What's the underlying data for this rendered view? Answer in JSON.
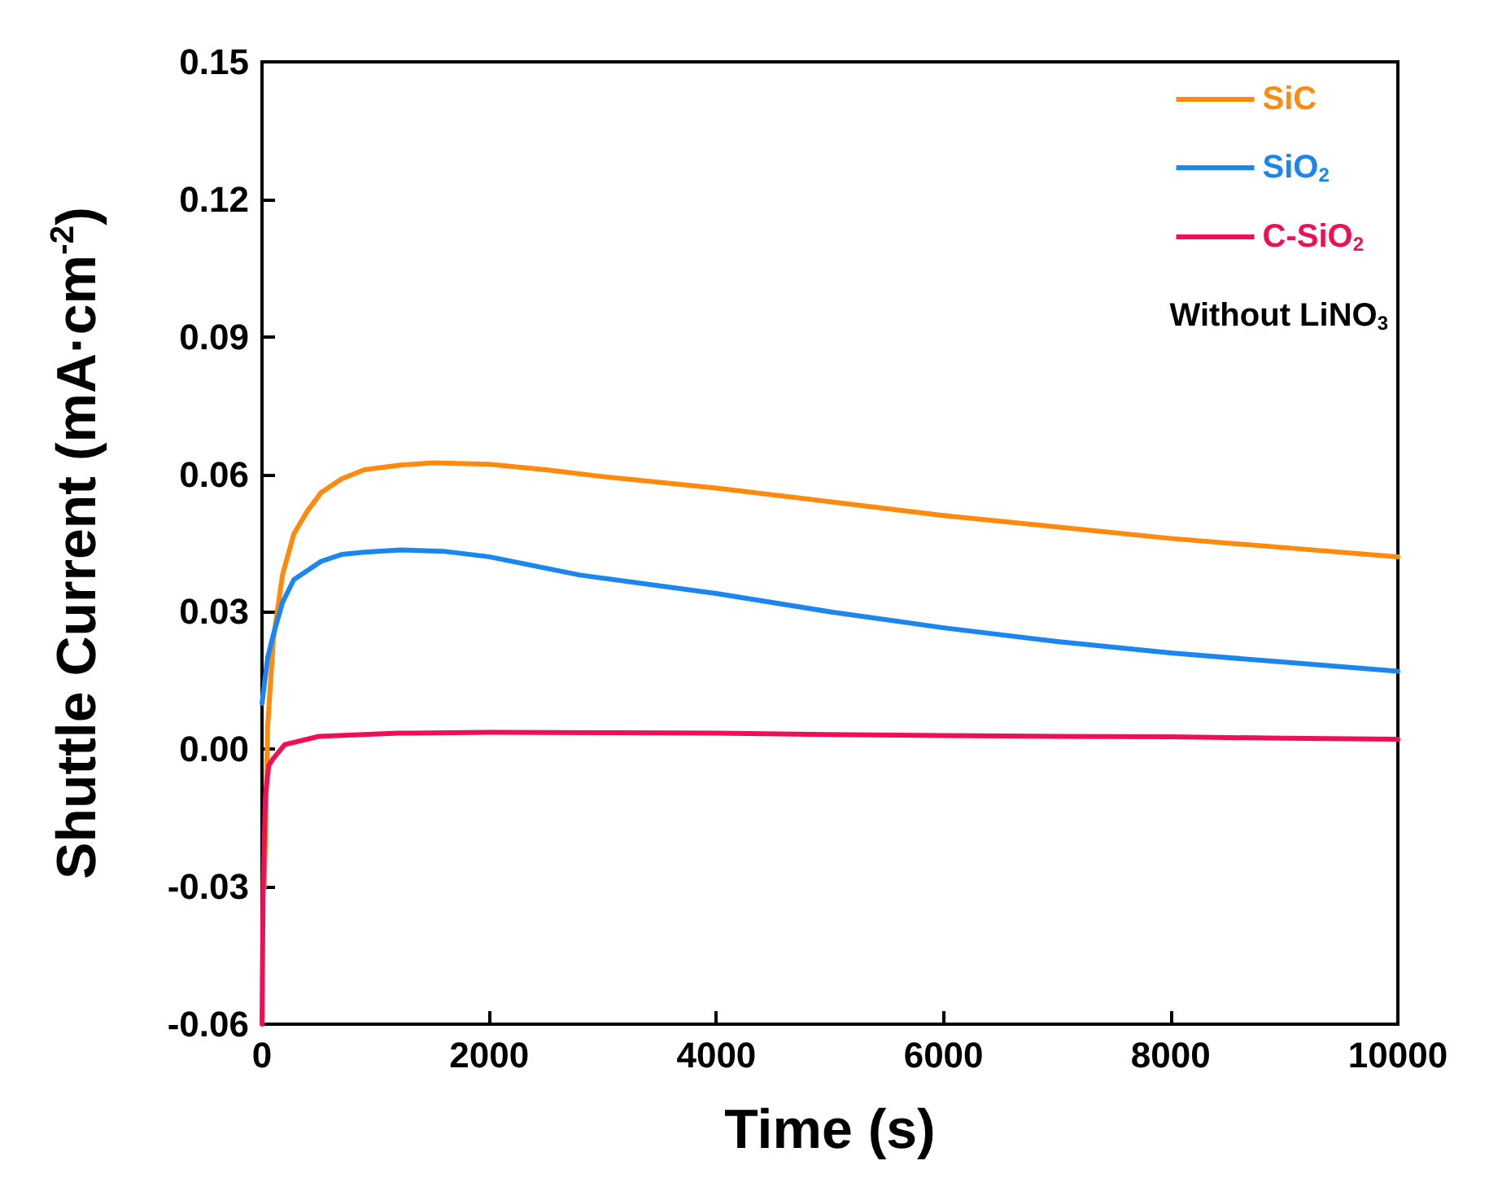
{
  "chart_data": {
    "type": "line",
    "xlabel": "Time (s)",
    "ylabel": "Shuttle Current (mA·cm$^{-2}$)",
    "annotations": [
      "Without LiNO$_{3}$"
    ],
    "xlim": [
      0,
      10000
    ],
    "xticks": [
      0,
      2000,
      4000,
      6000,
      8000,
      10000
    ],
    "ylim": [
      -0.06,
      0.15
    ],
    "yticks": [
      {
        "value": -0.06,
        "label": "-0.06"
      },
      {
        "value": -0.03,
        "label": "-0.03"
      },
      {
        "value": 0,
        "label": "0.00"
      },
      {
        "value": 0.03,
        "label": "0.03"
      },
      {
        "value": 0.06,
        "label": "0.06"
      },
      {
        "value": 0.09,
        "label": "0.09"
      },
      {
        "value": 0.12,
        "label": "0.12"
      },
      {
        "value": 0.15,
        "label": "0.15"
      }
    ],
    "grid": false,
    "legend": "top right",
    "marker": "none",
    "line_style": "solid",
    "series": [
      {
        "name": "SiC",
        "color": "#ff8a0d",
        "x": [
          20,
          50,
          100,
          180,
          280,
          400,
          520,
          700,
          900,
          1220,
          1500,
          2000,
          2500,
          3000,
          4000,
          5000,
          6000,
          7000,
          8000,
          9000,
          10000
        ],
        "values": [
          -0.03,
          0.005,
          0.024,
          0.038,
          0.047,
          0.052,
          0.056,
          0.059,
          0.061,
          0.062,
          0.0625,
          0.0622,
          0.061,
          0.0595,
          0.057,
          0.054,
          0.051,
          0.0485,
          0.046,
          0.044,
          0.042
        ]
      },
      {
        "name": "SiO$_{2}$",
        "color": "#1b86f0",
        "x": [
          0,
          50,
          100,
          180,
          280,
          400,
          520,
          700,
          900,
          1220,
          1600,
          2000,
          2800,
          4000,
          5000,
          6000,
          7000,
          8000,
          9000,
          10000
        ],
        "values": [
          0.01,
          0.02,
          0.025,
          0.032,
          0.037,
          0.039,
          0.041,
          0.0425,
          0.043,
          0.0435,
          0.0432,
          0.042,
          0.038,
          0.034,
          0.03,
          0.0265,
          0.0235,
          0.021,
          0.019,
          0.017
        ]
      },
      {
        "name": "C-SiO$_{2}$",
        "color": "#ef0f57",
        "x": [
          0,
          10,
          30,
          60,
          100,
          200,
          500,
          1200,
          2000,
          3000,
          4000,
          5000,
          6000,
          7000,
          8000,
          9000,
          10000
        ],
        "values": [
          -0.06,
          -0.03,
          -0.01,
          -0.0035,
          -0.002,
          0.001,
          0.0028,
          0.0035,
          0.0037,
          0.0036,
          0.0035,
          0.0032,
          0.003,
          0.0028,
          0.0027,
          0.0024,
          0.0022
        ]
      }
    ]
  }
}
